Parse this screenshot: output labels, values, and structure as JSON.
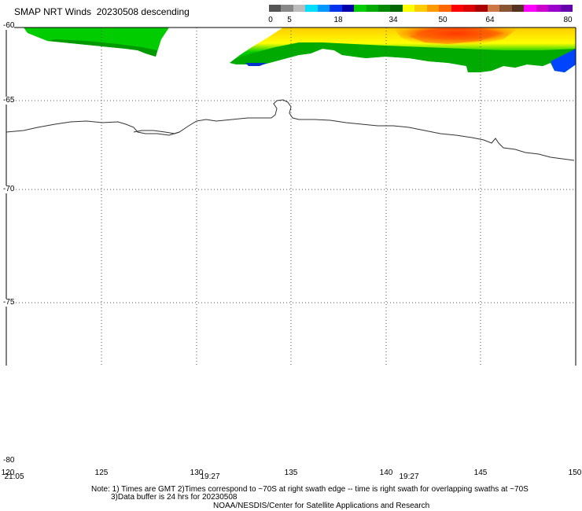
{
  "header": {
    "title": "SMAP NRT Winds  20230508 descending"
  },
  "colorbar": {
    "ticks": [
      "0",
      "5",
      "18",
      "34",
      "50",
      "64",
      "80"
    ],
    "segments": [
      {
        "color": "#555555"
      },
      {
        "color": "#888888"
      },
      {
        "color": "#bbbbbb"
      },
      {
        "color": "#00ddff"
      },
      {
        "color": "#0099ff"
      },
      {
        "color": "#0033ee"
      },
      {
        "color": "#0000aa"
      },
      {
        "color": "#00cc00"
      },
      {
        "color": "#00aa00"
      },
      {
        "color": "#008800"
      },
      {
        "color": "#006600"
      },
      {
        "color": "#ffff00"
      },
      {
        "color": "#ffcc00"
      },
      {
        "color": "#ff9900"
      },
      {
        "color": "#ff6600"
      },
      {
        "color": "#ff0000"
      },
      {
        "color": "#dd0000"
      },
      {
        "color": "#aa0000"
      },
      {
        "color": "#cc7744"
      },
      {
        "color": "#885533"
      },
      {
        "color": "#553322"
      },
      {
        "color": "#ff00ff"
      },
      {
        "color": "#cc00cc"
      },
      {
        "color": "#9900cc"
      },
      {
        "color": "#6600aa"
      }
    ]
  },
  "map": {
    "lat_labels": [
      "-60",
      "-65",
      "-70",
      "-75",
      "-80"
    ],
    "lon_labels": [
      "120",
      "125",
      "130",
      "135",
      "140",
      "145",
      "150"
    ],
    "time_labels": [
      "21:05",
      "19:27",
      "19:27"
    ]
  },
  "notes": {
    "line1": "Note: 1) Times are GMT 2)Times correspond to ~70S at right swath edge -- time is right swath for overlapping swaths at ~70S",
    "line2": "3)Data buffer is 24 hrs for 20230508",
    "line3": "NOAA/NESDIS/Center for Satellite Applications and Research"
  }
}
